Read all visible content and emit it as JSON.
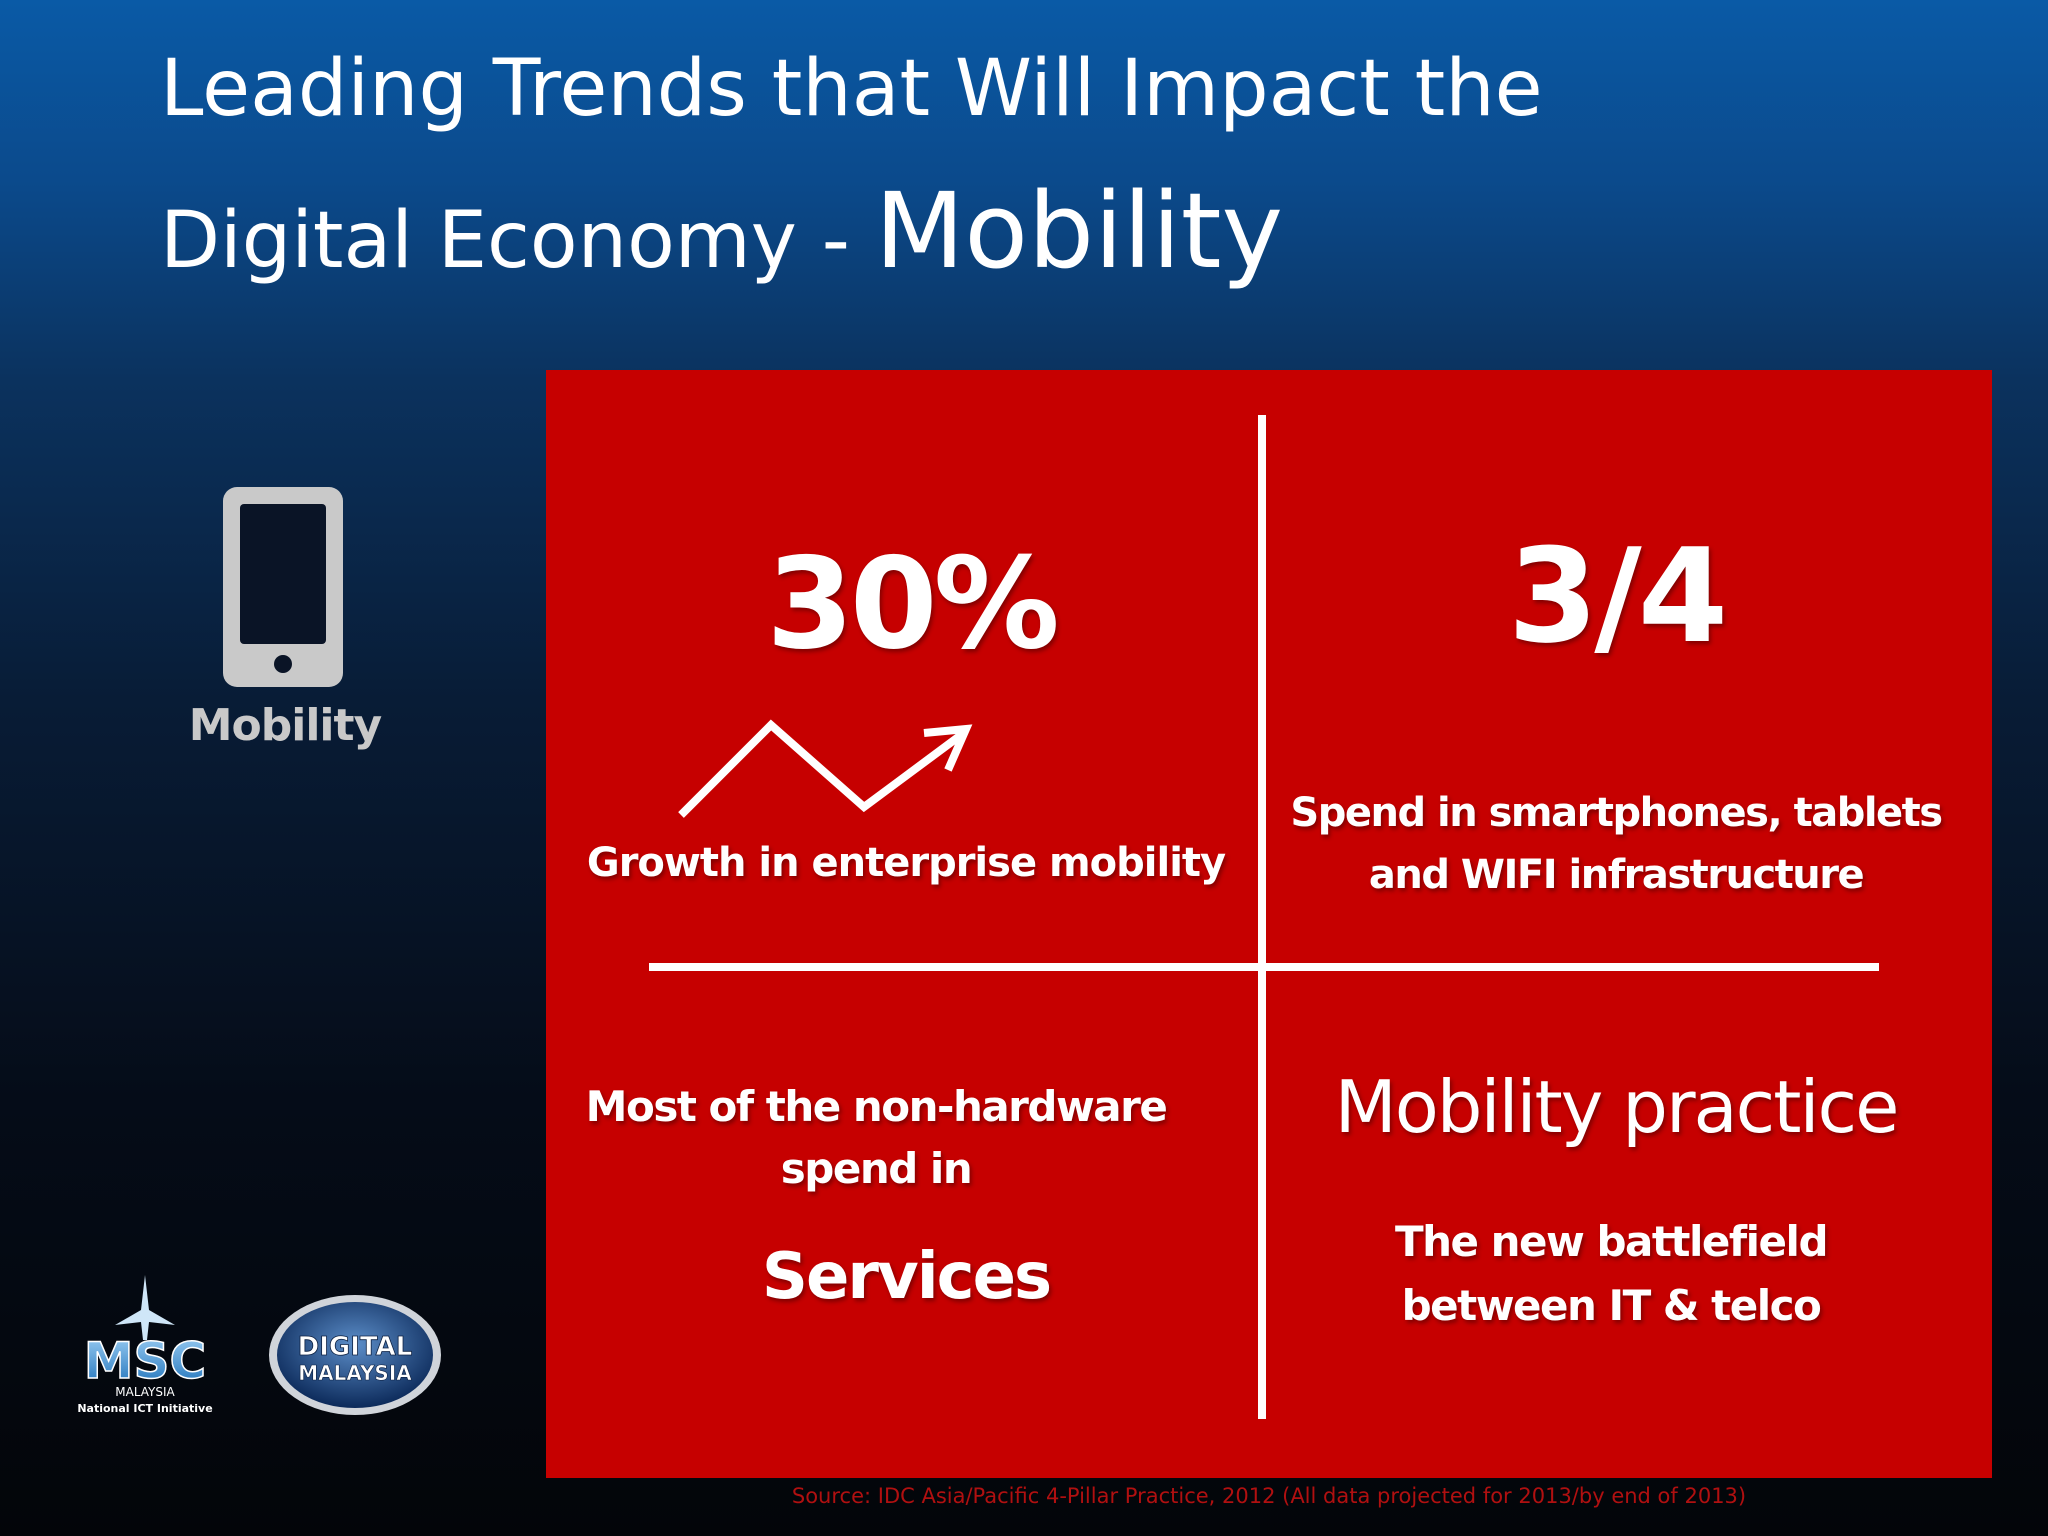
{
  "title": {
    "line1": "Leading Trends that Will Impact the",
    "line2_prefix": "Digital Economy - ",
    "line2_emphasis": "Mobility"
  },
  "sidebar": {
    "icon": "smartphone-icon",
    "label": "Mobility"
  },
  "quadrants": {
    "top_left": {
      "stat": "30%",
      "caption": "Growth in enterprise mobility",
      "icon": "trend-up-arrow-icon"
    },
    "top_right": {
      "stat": "3/4",
      "caption_line1": "Spend in smartphones, tablets",
      "caption_line2": "and WIFI infrastructure"
    },
    "bottom_left": {
      "text_line1": "Most of the non-hardware",
      "text_line2": "spend in",
      "emphasis": "Services"
    },
    "bottom_right": {
      "heading": "Mobility practice",
      "text_line1": "The new battlefield",
      "text_line2": "between IT & telco"
    }
  },
  "source": "Source: IDC Asia/Pacific 4-Pillar Practice, 2012 (All data projected for 2013/by end of 2013)",
  "logos": {
    "msc": {
      "name": "MSC",
      "sub1": "MALAYSIA",
      "sub2": "National ICT Initiative"
    },
    "digital_malaysia": {
      "line1": "DIGITAL",
      "line2": "MALAYSIA"
    }
  },
  "colors": {
    "panel": "#c60000",
    "source_text": "#b01010",
    "icon_gray": "#c9c9c9"
  }
}
